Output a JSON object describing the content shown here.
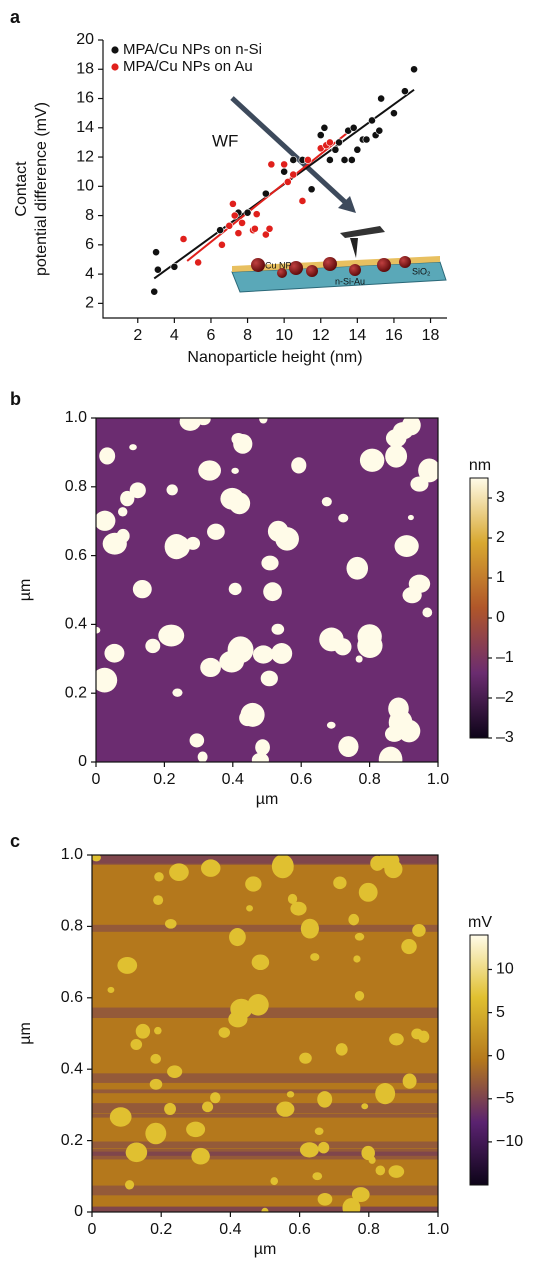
{
  "chart_data": [
    {
      "type": "scatter",
      "panel": "a",
      "xlabel": "Nanoparticle height (nm)",
      "ylabel": [
        "Contact",
        "potential difference (mV)"
      ],
      "xlim": [
        0.1,
        18.9
      ],
      "ylim": [
        1,
        20
      ],
      "xticks": [
        2,
        4,
        6,
        8,
        10,
        12,
        14,
        16,
        18
      ],
      "yticks": [
        2,
        4,
        6,
        8,
        10,
        12,
        14,
        16,
        18,
        20
      ],
      "legend": "top-left",
      "series": [
        {
          "name": "MPA/Cu NPs on n-Si",
          "color": "#111111",
          "x": [
            2.9,
            3.0,
            3.1,
            4.0,
            6.5,
            7.5,
            8.0,
            9.0,
            10.0,
            10.5,
            11.0,
            11.5,
            12.0,
            12.2,
            12.5,
            12.8,
            13.0,
            13.3,
            13.5,
            13.7,
            13.8,
            14.0,
            14.3,
            14.5,
            14.8,
            15.0,
            15.2,
            15.3,
            16.0,
            16.6,
            17.1
          ],
          "values": [
            2.8,
            5.5,
            4.3,
            4.5,
            7.0,
            8.2,
            8.2,
            9.5,
            11.0,
            11.8,
            11.8,
            9.8,
            13.5,
            14.0,
            11.8,
            12.5,
            13.0,
            11.8,
            13.8,
            11.8,
            14.0,
            12.5,
            13.2,
            13.2,
            14.5,
            13.5,
            13.8,
            16.0,
            15.0,
            16.5,
            18.0
          ]
        },
        {
          "name": "MPA/Cu NPs on Au",
          "color": "#e0201c",
          "x": [
            4.5,
            5.3,
            6.6,
            7.0,
            7.2,
            7.3,
            7.5,
            7.7,
            8.3,
            8.4,
            8.5,
            9.0,
            9.2,
            9.3,
            10.0,
            10.2,
            10.5,
            11.0,
            11.3,
            12.0,
            12.3,
            12.5
          ],
          "values": [
            6.4,
            4.8,
            6.0,
            7.3,
            8.8,
            8.0,
            6.8,
            7.5,
            7.0,
            7.1,
            8.1,
            6.7,
            7.1,
            11.5,
            11.5,
            10.3,
            10.8,
            9.0,
            11.8,
            12.6,
            12.8,
            13.0
          ]
        }
      ],
      "fits": [
        {
          "color": "#111111",
          "x": [
            2.9,
            17.1
          ],
          "values": [
            3.7,
            16.6
          ]
        },
        {
          "color": "#e0201c",
          "x": [
            4.7,
            13.8
          ],
          "values": [
            4.9,
            14.0
          ]
        }
      ],
      "annotations": {
        "arrow": "WF",
        "particle": "Cu NP",
        "oxide": "SiO₂",
        "substrate": "n-Si-Au"
      }
    },
    {
      "type": "image",
      "panel": "b",
      "xlabel": "µm",
      "ylabel": "µm",
      "xlim": [
        0,
        1
      ],
      "ylim": [
        0,
        1
      ],
      "xticks": [
        0,
        0.2,
        0.4,
        0.6,
        0.8,
        {
          "value": 1,
          "label": "1.0"
        }
      ],
      "yticks": [
        0,
        0.2,
        0.4,
        0.6,
        0.8,
        {
          "value": 1,
          "label": "1.0"
        }
      ],
      "colorbar_label": "nm",
      "clim": [
        -3,
        3.5
      ],
      "cticks": [
        {
          "value": 3,
          "label": "3"
        },
        {
          "value": 2,
          "label": "2"
        },
        {
          "value": 1,
          "label": "1"
        },
        {
          "value": 0,
          "label": "0"
        },
        {
          "value": -1,
          "label": "–1"
        },
        {
          "value": -2,
          "label": "–2"
        },
        {
          "value": -3,
          "label": "–3"
        }
      ],
      "colormap": [
        "#0d0418",
        "#6b2c70",
        "#b0562a",
        "#d8a830",
        "#fffbe8"
      ]
    },
    {
      "type": "image",
      "panel": "c",
      "xlabel": "µm",
      "ylabel": "µm",
      "xlim": [
        0,
        1
      ],
      "ylim": [
        0,
        1
      ],
      "xticks": [
        0,
        0.2,
        0.4,
        0.6,
        0.8,
        {
          "value": 1,
          "label": "1.0"
        }
      ],
      "yticks": [
        0,
        0.2,
        0.4,
        0.6,
        0.8,
        {
          "value": 1,
          "label": "1.0"
        }
      ],
      "colorbar_label": "mV",
      "clim": [
        -15,
        14
      ],
      "cticks": [
        {
          "value": 10,
          "label": "10"
        },
        {
          "value": 5,
          "label": "5"
        },
        {
          "value": 0,
          "label": "0"
        },
        {
          "value": -5,
          "label": "−5"
        },
        {
          "value": -10,
          "label": "−10"
        }
      ],
      "colormap": [
        "#0d0418",
        "#5a2270",
        "#b4781c",
        "#e0c030",
        "#fffbe8"
      ]
    }
  ]
}
